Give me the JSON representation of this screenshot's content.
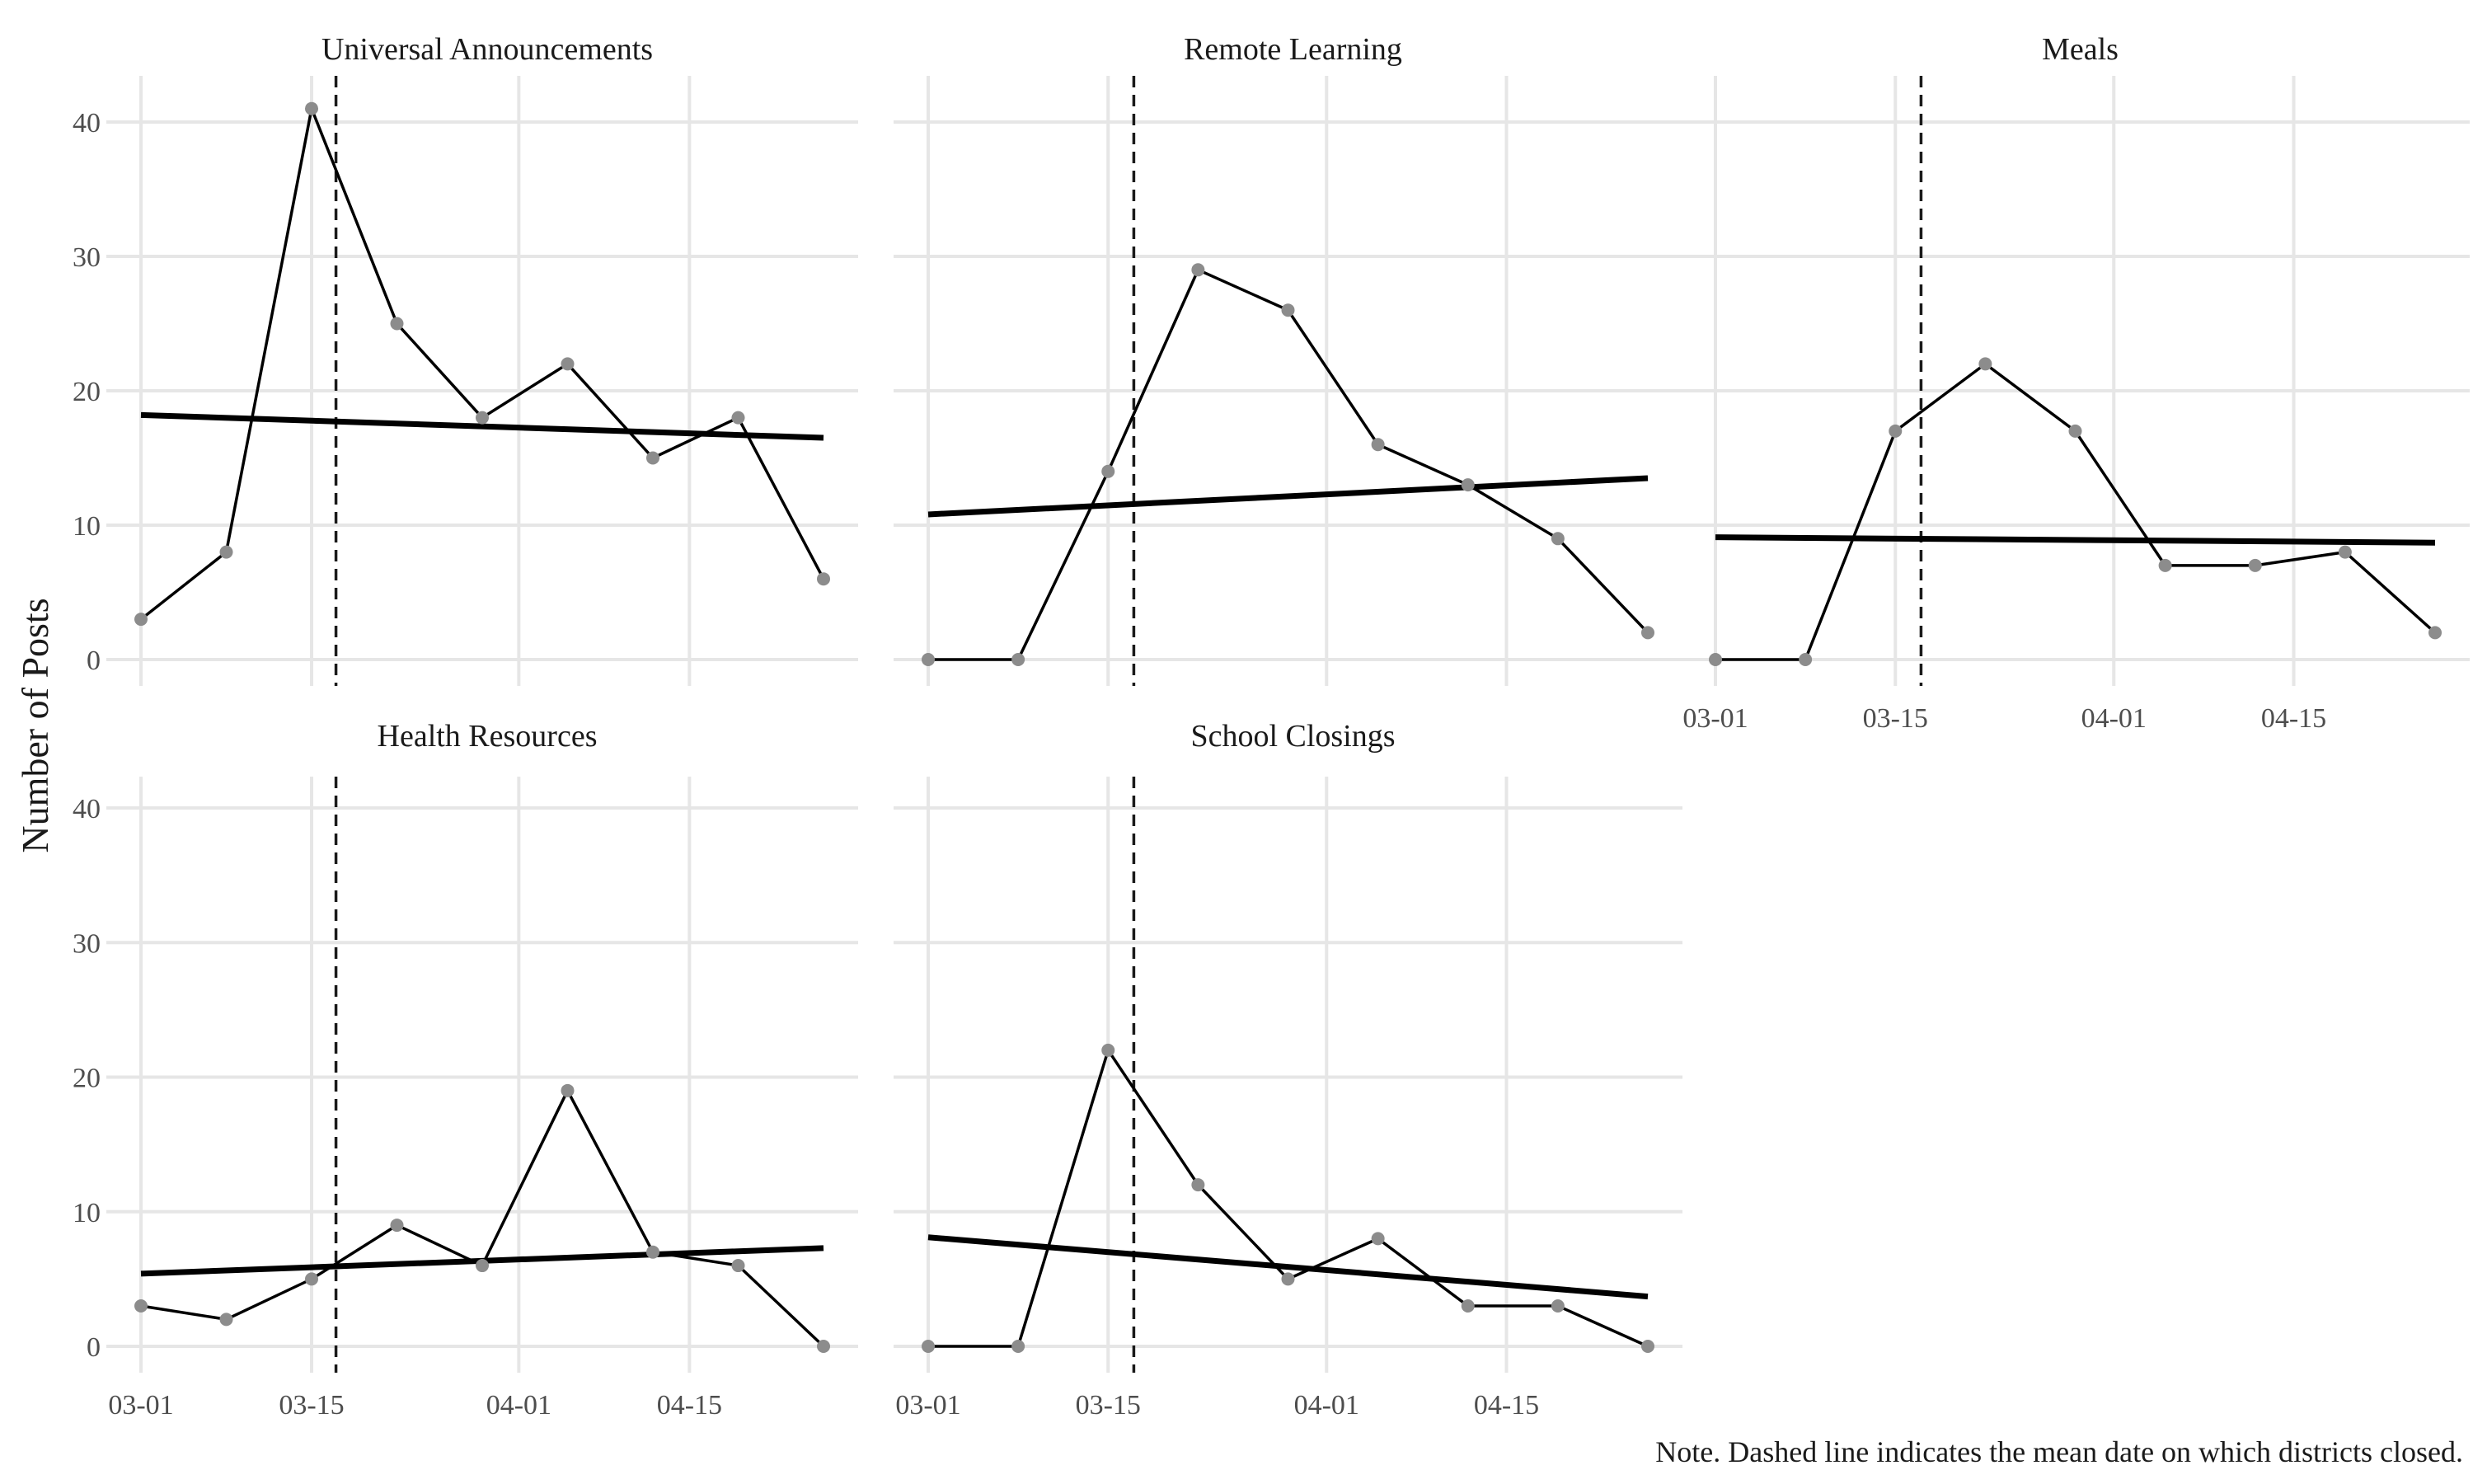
{
  "chart_data": {
    "type": "line",
    "ylabel": "Number of Posts",
    "xlabel": "",
    "note": "Note. Dashed line indicates the mean date on which districts closed.",
    "x": [
      "03-01",
      "03-08",
      "03-15",
      "03-22",
      "03-29",
      "04-05",
      "04-12",
      "04-19",
      "04-26"
    ],
    "x_ticks": [
      "03-01",
      "03-15",
      "04-01",
      "04-15"
    ],
    "y_ticks": [
      0,
      10,
      20,
      30,
      40
    ],
    "ylim": [
      0,
      42
    ],
    "xlim": [
      "03-01",
      "04-26"
    ],
    "vline_date": "03-17",
    "grid": true,
    "colors": {
      "line": "#000000",
      "points": "#8c8c8c",
      "grid": "#e6e6e6"
    },
    "panels": [
      {
        "title": "Universal Announcements",
        "values": [
          3,
          8,
          41,
          25,
          18,
          22,
          15,
          18,
          6
        ],
        "trend": [
          18.2,
          16.5
        ]
      },
      {
        "title": "Remote Learning",
        "values": [
          0,
          0,
          14,
          29,
          26,
          16,
          13,
          9,
          2
        ],
        "trend": [
          10.8,
          13.5
        ]
      },
      {
        "title": "Meals",
        "values": [
          0,
          0,
          17,
          22,
          17,
          7,
          7,
          8,
          2
        ],
        "trend": [
          9.1,
          8.7
        ]
      },
      {
        "title": "Health Resources",
        "values": [
          3,
          2,
          5,
          9,
          6,
          19,
          7,
          6,
          0
        ],
        "trend": [
          5.4,
          7.3
        ]
      },
      {
        "title": "School Closings",
        "values": [
          0,
          0,
          22,
          12,
          5,
          8,
          3,
          3,
          0
        ],
        "trend": [
          8.1,
          3.7
        ]
      }
    ]
  }
}
